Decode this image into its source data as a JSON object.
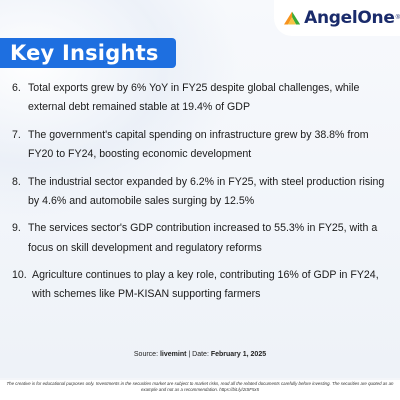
{
  "brand": {
    "name": "AngelOne",
    "registered": "®"
  },
  "title": "Key Insights",
  "insights": [
    {
      "num": "6.",
      "text": "Total exports grew by 6% YoY in FY25 despite global challenges, while external debt remained stable at 19.4% of GDP"
    },
    {
      "num": "7.",
      "text": "The government's capital spending on infrastructure grew by 38.8% from FY20 to FY24, boosting economic development"
    },
    {
      "num": "8.",
      "text": "The industrial sector expanded by 6.2% in FY25, with steel production rising by 4.6% and automobile sales surging by 12.5%"
    },
    {
      "num": "9.",
      "text": "The services sector's GDP contribution increased to 55.3% in FY25, with a focus on skill development and regulatory reforms"
    },
    {
      "num": "10.",
      "text": "Agriculture continues to play a key role, contributing 16% of GDP in FY24, with schemes like PM-KISAN supporting farmers"
    }
  ],
  "source": {
    "label": "Source:",
    "value": "livemint",
    "separator": "|",
    "date_label": "Date:",
    "date_value": "February 1, 2025"
  },
  "disclaimer": "The creative is for educational purposes only. Investments in the securities market are subject to market risks, read all the related documents carefully before investing. The securities are quoted as an example and not as a recommendation. https://bit.ly/2ISF5x5",
  "colors": {
    "title_bg": "#1e6fe0",
    "brand_text": "#1a2b6b",
    "logo_orange": "#f7931e",
    "logo_green": "#3aaa35"
  }
}
